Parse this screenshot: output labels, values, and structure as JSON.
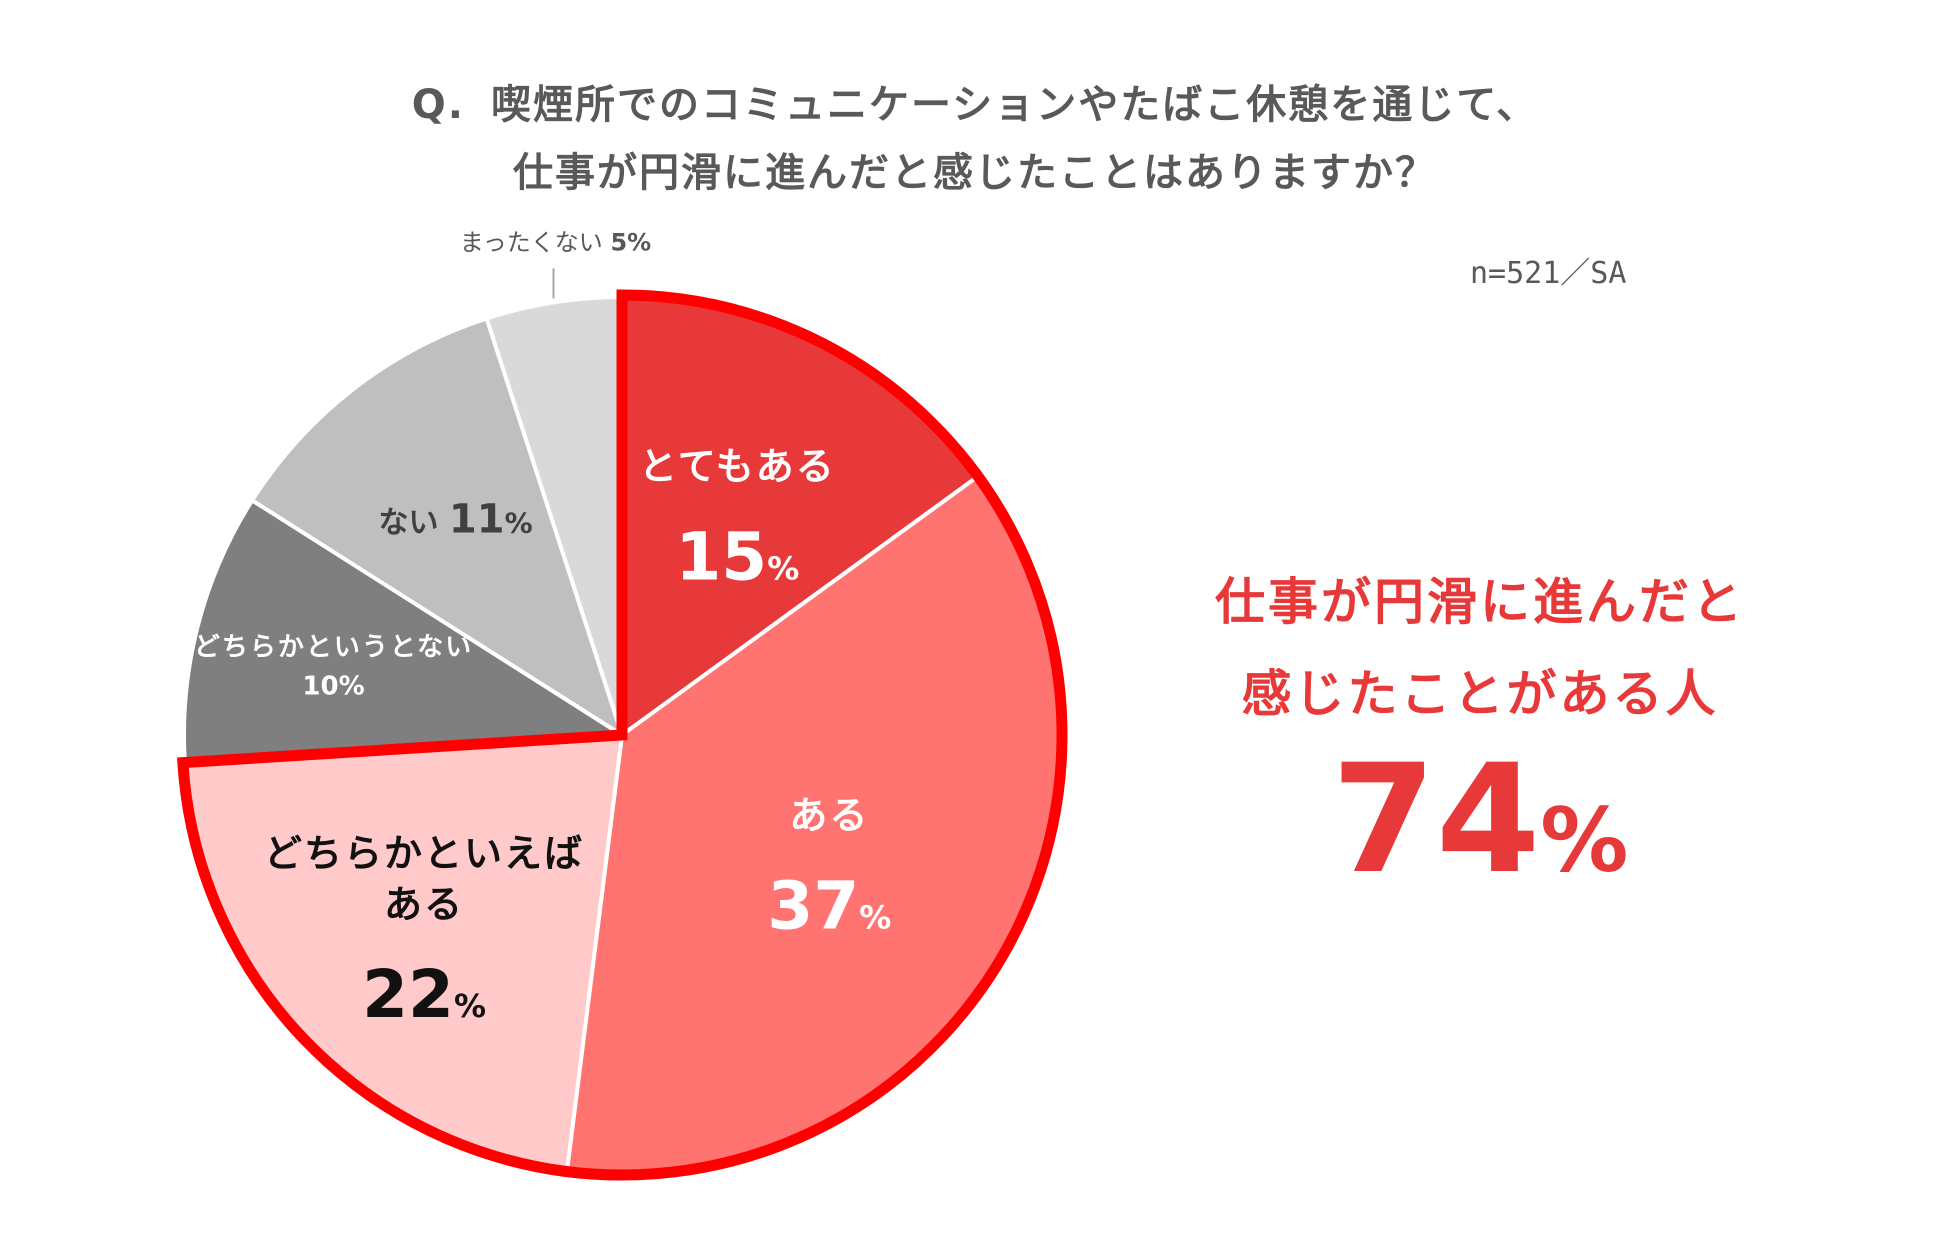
{
  "chart_data": {
    "type": "pie",
    "title_prefix": "Q.",
    "title_lines": [
      "喫煙所でのコミュニケーションやたばこ休憩を通じて、",
      "仕事が円滑に進んだと感じたことはありますか？"
    ],
    "sample_note": "n=521／SA",
    "start": "12 o'clock, clockwise",
    "slices": [
      {
        "label_lines": [
          "とてもある"
        ],
        "value": 15,
        "color": "#e8393a",
        "label_color": "#ffffff",
        "highlighted": true
      },
      {
        "label_lines": [
          "ある"
        ],
        "value": 37,
        "color": "#ff7470",
        "label_color": "#ffffff",
        "highlighted": true
      },
      {
        "label_lines": [
          "どちらかといえば",
          "ある"
        ],
        "value": 22,
        "color": "#ffcac9",
        "label_color": "#111111",
        "highlighted": true
      },
      {
        "label_lines": [
          "どちらかというとない"
        ],
        "value": 10,
        "color": "#7f7f7f",
        "label_color": "#ffffff",
        "highlighted": false
      },
      {
        "label_lines": [
          "ない"
        ],
        "value": 11,
        "color": "#bfbfbf",
        "label_color": "#404040",
        "highlighted": false
      },
      {
        "label_lines": [
          "まったくない"
        ],
        "value": 5,
        "color": "#d9d9d9",
        "label_color": "#595959",
        "highlighted": false
      }
    ],
    "percent_suffix": "%",
    "highlight_color": "#ff0000",
    "callout": {
      "lines": [
        "仕事が円滑に進んだと",
        "感じたことがある人"
      ],
      "value": "74",
      "suffix": "%",
      "color": "#e8393a"
    }
  }
}
